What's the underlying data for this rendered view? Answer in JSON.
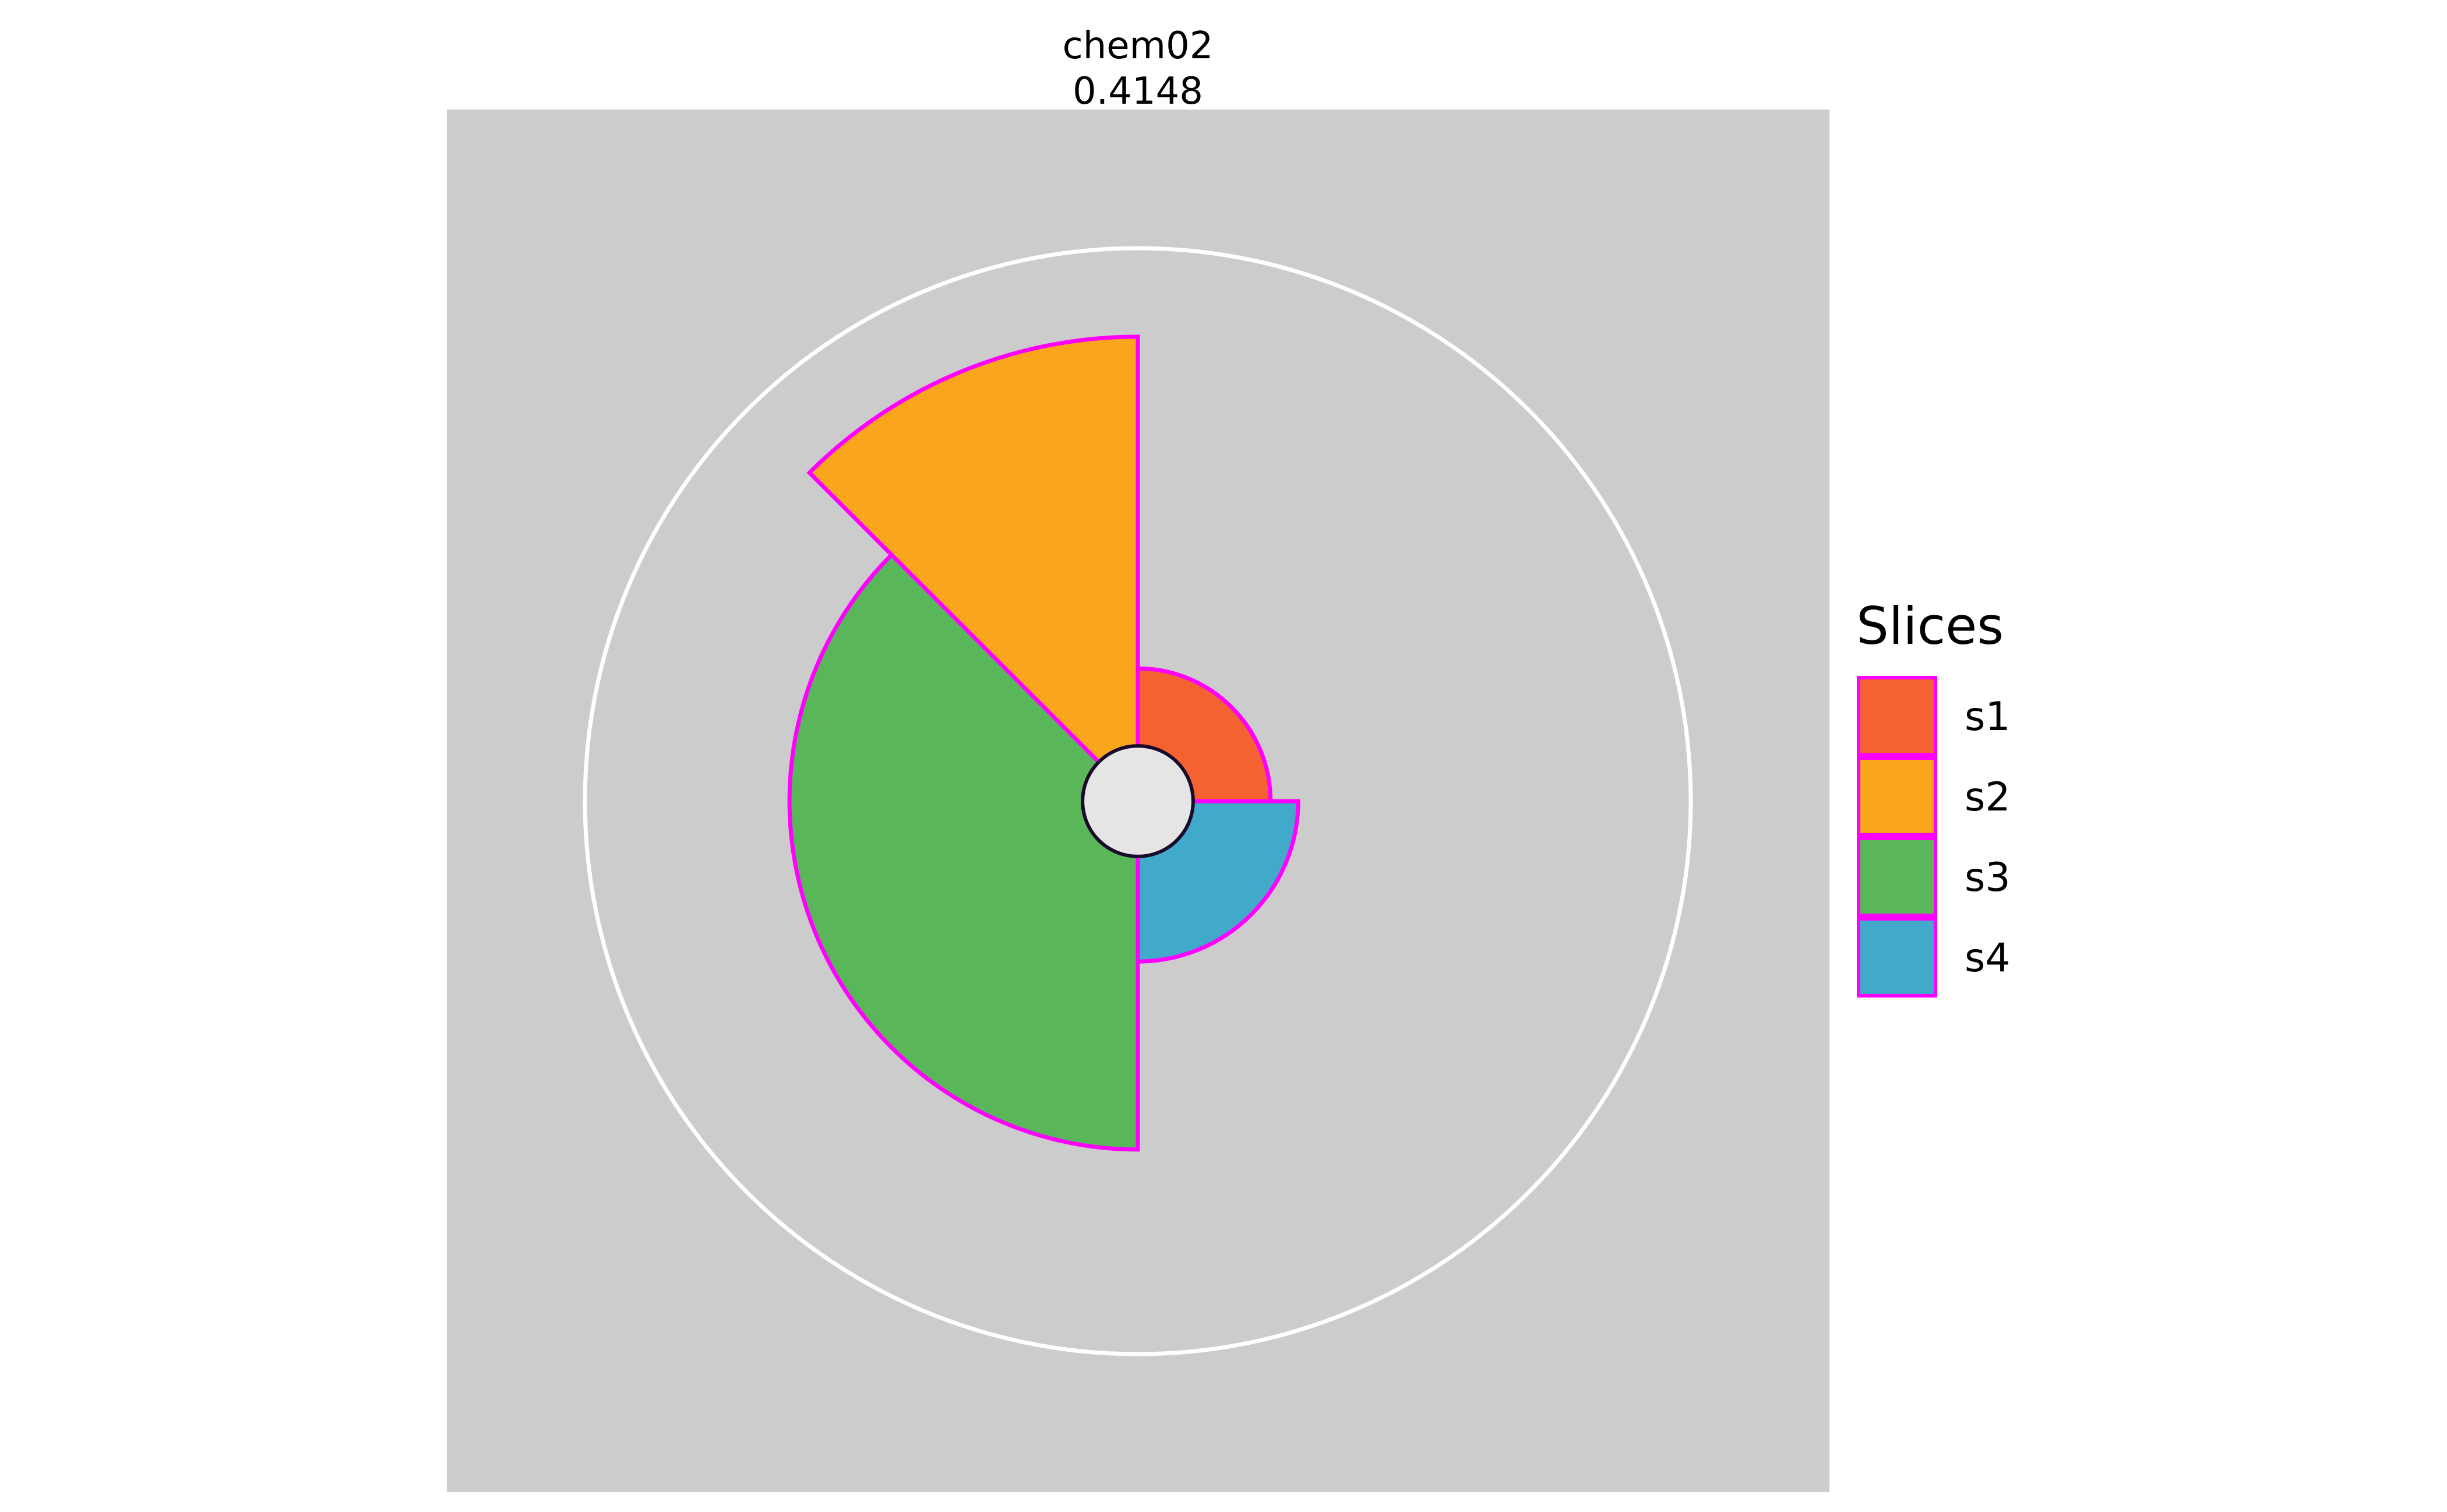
{
  "chart_data": {
    "type": "pie",
    "subtype": "radial-sector",
    "title": "chem02",
    "subtitle": "0.4148",
    "panel_background": "#cccccc",
    "outline_color": "#ff00ff",
    "center_fill": "#e5e5e5",
    "center_stroke": "#1a0a2a",
    "reference_circle_color": "#ffffff",
    "radial_max": 1.0,
    "reference_circle": 1.0,
    "center_radius": 0.1,
    "legend": {
      "title": "Slices",
      "position": "right"
    },
    "slices": [
      {
        "name": "s1",
        "start_deg": 0,
        "end_deg": 90,
        "value": 0.24,
        "color": "#f46232"
      },
      {
        "name": "s2",
        "start_deg": 315,
        "end_deg": 360,
        "value": 0.84,
        "color": "#f9a61d"
      },
      {
        "name": "s3",
        "start_deg": 180,
        "end_deg": 315,
        "value": 0.63,
        "color": "#59b759"
      },
      {
        "name": "s4",
        "start_deg": 90,
        "end_deg": 180,
        "value": 0.29,
        "color": "#41a9c9"
      }
    ]
  }
}
